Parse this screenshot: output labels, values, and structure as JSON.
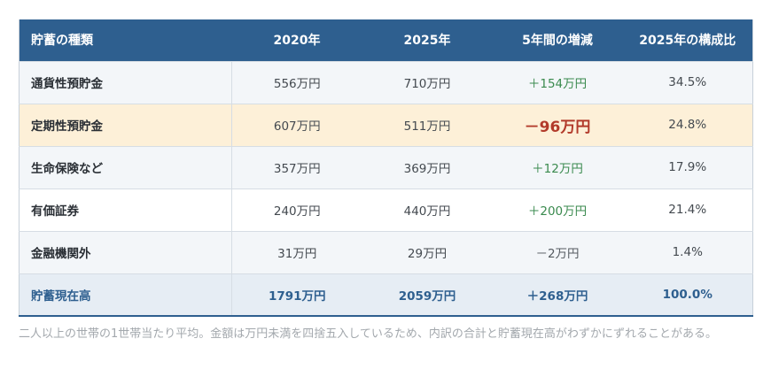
{
  "table": {
    "headers": [
      "貯蓄の種類",
      "2020年",
      "2025年",
      "5年間の増減",
      "2025年の構成比"
    ],
    "rows": [
      {
        "label": "通貨性預貯金",
        "y2020": "556万円",
        "y2025": "710万円",
        "change": "＋154万円",
        "share": "34.5%"
      },
      {
        "label": "定期性預貯金",
        "y2020": "607万円",
        "y2025": "511万円",
        "change": "－96万円",
        "share": "24.8%"
      },
      {
        "label": "生命保険など",
        "y2020": "357万円",
        "y2025": "369万円",
        "change": "＋12万円",
        "share": "17.9%"
      },
      {
        "label": "有価証券",
        "y2020": "240万円",
        "y2025": "440万円",
        "change": "＋200万円",
        "share": "21.4%"
      },
      {
        "label": "金融機関外",
        "y2020": "31万円",
        "y2025": "29万円",
        "change": "－2万円",
        "share": "1.4%"
      }
    ],
    "total": {
      "label": "貯蓄現在高",
      "y2020": "1791万円",
      "y2025": "2059万円",
      "change": "＋268万円",
      "share": "100.0%"
    }
  },
  "footnote": "二人以上の世帯の1世帯当たり平均。金額は万円未満を四捨五入しているため、内訳の合計と貯蓄現在高がわずかにずれることがある。",
  "colors": {
    "header_bg": "#2e5f8f",
    "highlight_row_bg": "#fdf0d8",
    "positive_change": "#3a8a4e",
    "negative_highlight": "#b23a2a"
  }
}
